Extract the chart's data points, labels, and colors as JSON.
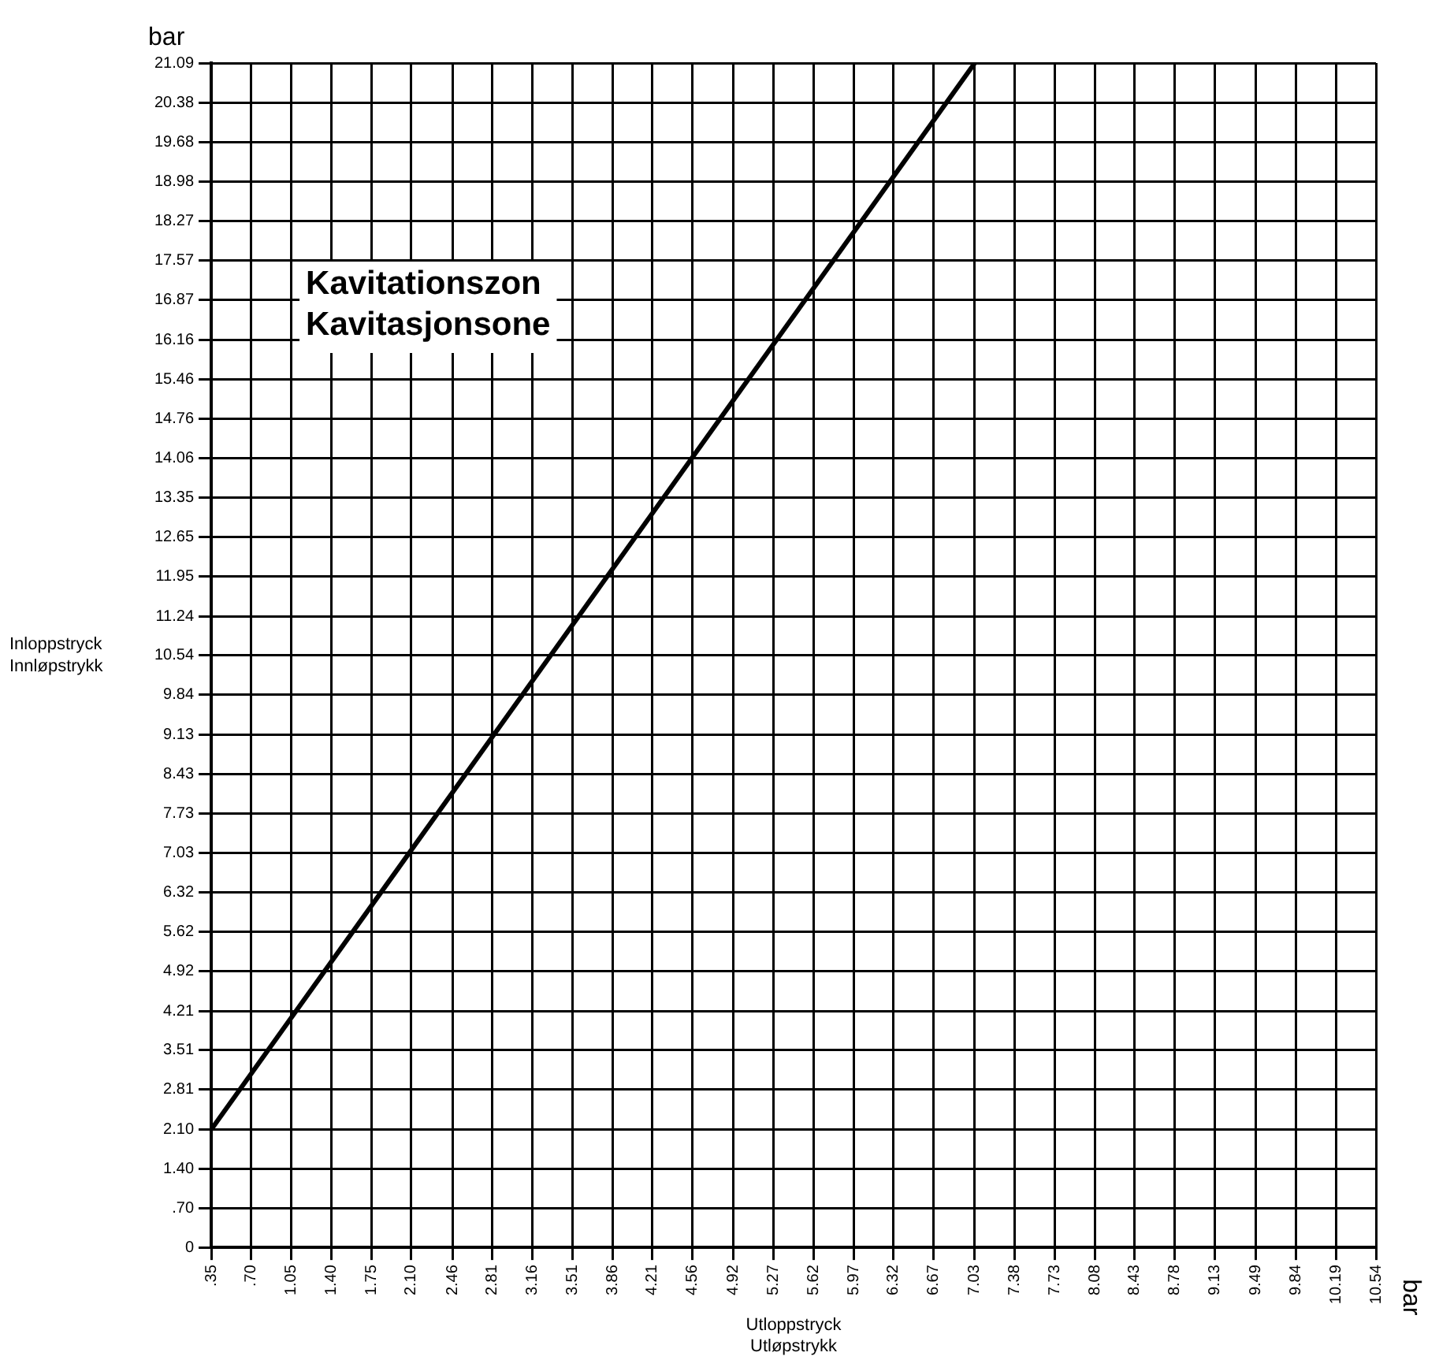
{
  "chart_data": {
    "type": "line",
    "xlabel": "Utloppstryck\nUtløpstrykk",
    "ylabel": "Inloppstryck\nInnløpstrykk",
    "annotations": [
      "bar",
      "bar",
      "Kavitationszon\nKavitasjonsone"
    ],
    "x": [
      0.35,
      7.03
    ],
    "series": [
      {
        "color": "#000000",
        "values": [
          2.1,
          21.09
        ]
      }
    ],
    "xlim": [
      0.35,
      10.54
    ],
    "xticks": [
      {
        "value": 0.35,
        "label": ".35"
      },
      {
        "value": 0.7,
        "label": ".70"
      },
      1.05,
      {
        "value": 1.4,
        "label": "1.40"
      },
      1.75,
      {
        "value": 2.1,
        "label": "2.10"
      },
      2.46,
      2.81,
      3.16,
      3.51,
      3.86,
      4.21,
      4.56,
      4.92,
      5.27,
      5.62,
      5.97,
      6.32,
      6.67,
      7.03,
      7.38,
      7.73,
      8.08,
      8.43,
      8.78,
      9.13,
      9.49,
      9.84,
      10.19,
      10.54
    ],
    "ylim": [
      0,
      21.09
    ],
    "yticks": [
      0,
      {
        "value": 0.7,
        "label": ".70"
      },
      {
        "value": 1.4,
        "label": "1.40"
      },
      {
        "value": 2.1,
        "label": "2.10"
      },
      2.81,
      3.51,
      4.21,
      4.92,
      5.62,
      6.32,
      7.03,
      7.73,
      8.43,
      9.13,
      9.84,
      10.54,
      11.24,
      11.95,
      12.65,
      13.35,
      14.06,
      14.76,
      15.46,
      16.16,
      16.87,
      17.57,
      18.27,
      18.98,
      19.68,
      20.38,
      21.09
    ],
    "grid": true,
    "legend": false,
    "marker": "none",
    "line_style": "solid"
  }
}
